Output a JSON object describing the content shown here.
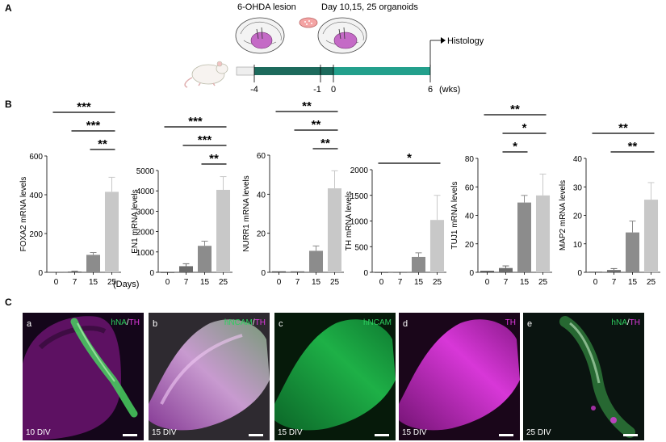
{
  "panel_a": {
    "label": "A",
    "lesion_label": "6-OHDA lesion",
    "organoid_label": "Day 10,15, 25 organoids",
    "histology_label": "Histology",
    "time_ticks": [
      "-4",
      "-1",
      "0",
      "6"
    ],
    "time_unit": "(wks)",
    "colors": {
      "lesion_phase": "#1d6a5c",
      "organoid_phase": "#23a08c",
      "brain_stain": "#c058c0"
    },
    "icons": [
      "mouse-icon",
      "brain-icon",
      "petri-dish-icon",
      "arrow-icon"
    ]
  },
  "panel_b": {
    "label": "B",
    "days_unit": "(Days)"
  },
  "panel_c": {
    "label": "C",
    "colors": {
      "green": "#2fcf60",
      "magenta": "#e03ae0"
    },
    "images": [
      {
        "letter": "a",
        "markers": [
          {
            "text": "hNA",
            "color": "green"
          },
          {
            "text": "/",
            "color": "white"
          },
          {
            "text": "TH",
            "color": "magenta"
          }
        ],
        "div": "10 DIV"
      },
      {
        "letter": "b",
        "markers": [
          {
            "text": "hNCAM",
            "color": "green"
          },
          {
            "text": "/",
            "color": "white"
          },
          {
            "text": "TH",
            "color": "magenta"
          }
        ],
        "div": "15 DIV"
      },
      {
        "letter": "c",
        "markers": [
          {
            "text": "hNCAM",
            "color": "green"
          }
        ],
        "div": "15 DIV"
      },
      {
        "letter": "d",
        "markers": [
          {
            "text": "TH",
            "color": "magenta"
          }
        ],
        "div": "15 DIV"
      },
      {
        "letter": "e",
        "markers": [
          {
            "text": "hNA",
            "color": "green"
          },
          {
            "text": "/",
            "color": "white"
          },
          {
            "text": "TH",
            "color": "magenta"
          }
        ],
        "div": "25 DIV"
      }
    ]
  },
  "chart_data": [
    {
      "type": "bar",
      "ylabel": "FOXA2 mRNA levels",
      "categories": [
        "0",
        "7",
        "15",
        "25"
      ],
      "values": [
        1,
        4,
        90,
        415
      ],
      "errors": [
        0,
        2,
        12,
        75
      ],
      "ylim": [
        0,
        600
      ],
      "yticks": [
        0,
        200,
        400,
        600
      ],
      "bar_colors": [
        "#4d4d4d",
        "#6b6b6b",
        "#8c8c8c",
        "#c8c8c8"
      ],
      "significance": [
        {
          "from": "0",
          "to": "25",
          "label": "***"
        },
        {
          "from": "7",
          "to": "25",
          "label": "***"
        },
        {
          "from": "15",
          "to": "25",
          "label": "**"
        }
      ]
    },
    {
      "type": "bar",
      "ylabel": "EN1 mRNA levels",
      "categories": [
        "0",
        "7",
        "15",
        "25"
      ],
      "values": [
        1,
        300,
        1300,
        4050
      ],
      "errors": [
        0,
        120,
        230,
        650
      ],
      "ylim": [
        0,
        5000
      ],
      "yticks": [
        0,
        1000,
        2000,
        3000,
        4000,
        5000
      ],
      "bar_colors": [
        "#4d4d4d",
        "#6b6b6b",
        "#8c8c8c",
        "#c8c8c8"
      ],
      "significance": [
        {
          "from": "0",
          "to": "25",
          "label": "***"
        },
        {
          "from": "7",
          "to": "25",
          "label": "***"
        },
        {
          "from": "15",
          "to": "25",
          "label": "**"
        }
      ]
    },
    {
      "type": "bar",
      "ylabel": "NURR1 mRNA levels",
      "categories": [
        "0",
        "7",
        "15",
        "25"
      ],
      "values": [
        0.5,
        0.5,
        11,
        43
      ],
      "errors": [
        0,
        0,
        2.5,
        9
      ],
      "ylim": [
        0,
        60
      ],
      "yticks": [
        0,
        20,
        40,
        60
      ],
      "bar_colors": [
        "#4d4d4d",
        "#6b6b6b",
        "#8c8c8c",
        "#c8c8c8"
      ],
      "significance": [
        {
          "from": "0",
          "to": "25",
          "label": "**"
        },
        {
          "from": "7",
          "to": "25",
          "label": "**"
        },
        {
          "from": "15",
          "to": "25",
          "label": "**"
        }
      ]
    },
    {
      "type": "bar",
      "ylabel": "TH mRNA levels",
      "categories": [
        "0",
        "7",
        "15",
        "25"
      ],
      "values": [
        1,
        1,
        300,
        1020
      ],
      "errors": [
        0,
        0,
        80,
        480
      ],
      "ylim": [
        0,
        2000
      ],
      "yticks": [
        0,
        500,
        1000,
        1500,
        2000
      ],
      "bar_colors": [
        "#4d4d4d",
        "#6b6b6b",
        "#8c8c8c",
        "#c8c8c8"
      ],
      "significance": [
        {
          "from": "0",
          "to": "25",
          "label": "*"
        }
      ]
    },
    {
      "type": "bar",
      "ylabel": "TUJ1 mRNA levels",
      "categories": [
        "0",
        "7",
        "15",
        "25"
      ],
      "values": [
        1,
        3,
        49,
        54
      ],
      "errors": [
        0,
        1.5,
        5,
        15
      ],
      "ylim": [
        0,
        80
      ],
      "yticks": [
        0,
        20,
        40,
        60,
        80
      ],
      "bar_colors": [
        "#4d4d4d",
        "#6b6b6b",
        "#8c8c8c",
        "#c8c8c8"
      ],
      "significance": [
        {
          "from": "0",
          "to": "25",
          "label": "**"
        },
        {
          "from": "7",
          "to": "25",
          "label": "*"
        },
        {
          "from": "7",
          "to": "15",
          "label": "*"
        }
      ]
    },
    {
      "type": "bar",
      "ylabel": "MAP2 mRNA levels",
      "categories": [
        "0",
        "7",
        "15",
        "25"
      ],
      "values": [
        0.2,
        0.8,
        14,
        25.5
      ],
      "errors": [
        0,
        0.5,
        4,
        6
      ],
      "ylim": [
        0,
        40
      ],
      "yticks": [
        0,
        10,
        20,
        30,
        40
      ],
      "bar_colors": [
        "#4d4d4d",
        "#6b6b6b",
        "#8c8c8c",
        "#c8c8c8"
      ],
      "significance": [
        {
          "from": "0",
          "to": "25",
          "label": "**"
        },
        {
          "from": "7",
          "to": "25",
          "label": "**"
        }
      ]
    }
  ]
}
